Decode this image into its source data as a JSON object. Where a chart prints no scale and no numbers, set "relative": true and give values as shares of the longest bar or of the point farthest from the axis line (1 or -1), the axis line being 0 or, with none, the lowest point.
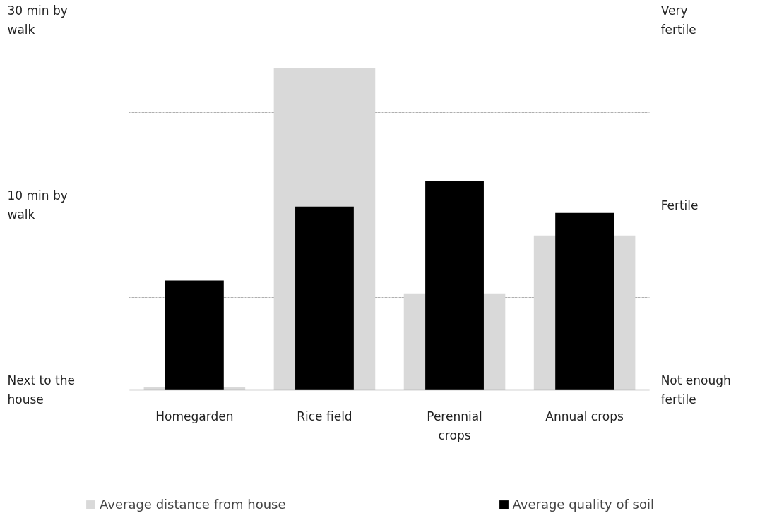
{
  "chart_data": {
    "type": "bar",
    "relative": true,
    "categories": [
      "Homegarden",
      "Rice field",
      "Perennial crops",
      "Annual crops"
    ],
    "series": [
      {
        "name": "Average distance from house",
        "color": "#d9d9d9",
        "values": [
          0.01,
          1,
          0.3,
          0.48
        ]
      },
      {
        "name": "Average quality of soil",
        "color": "#000000",
        "values": [
          0.34,
          0.57,
          0.65,
          0.55
        ]
      }
    ],
    "annotations": [
      "Next to the house",
      "10 min by walk",
      "30 min by walk",
      "Not enough fertile",
      "Fertile",
      "Very fertile"
    ],
    "grid": "y",
    "legend": "bottom"
  }
}
